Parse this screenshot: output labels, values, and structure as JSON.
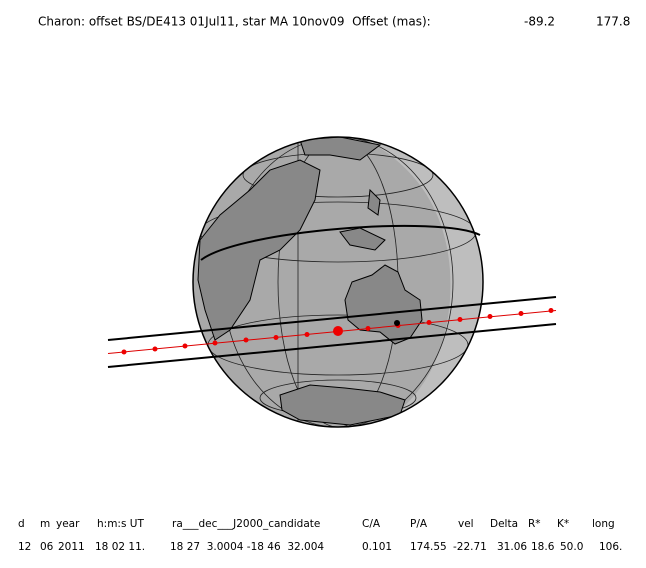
{
  "header": {
    "title": "Charon: offset BS/DE413 01Jul11, star MA 10nov09  Offset (mas):",
    "values": [
      "-89.2",
      "177.8"
    ]
  },
  "table": {
    "headers": [
      "d",
      "m",
      "year",
      "h:m:s UT",
      "ra___dec___J2000_candidate",
      "C/A",
      "P/A",
      "vel",
      "Delta",
      "R*",
      "K*",
      "long"
    ],
    "rows": [
      [
        "12",
        "06",
        "2011",
        "18 02 11.",
        "18 27  3.0004 -18 46  32.004",
        "0.101",
        "174.55",
        "-22.71",
        "31.06",
        "18.6",
        "50.0",
        "106."
      ]
    ]
  }
}
